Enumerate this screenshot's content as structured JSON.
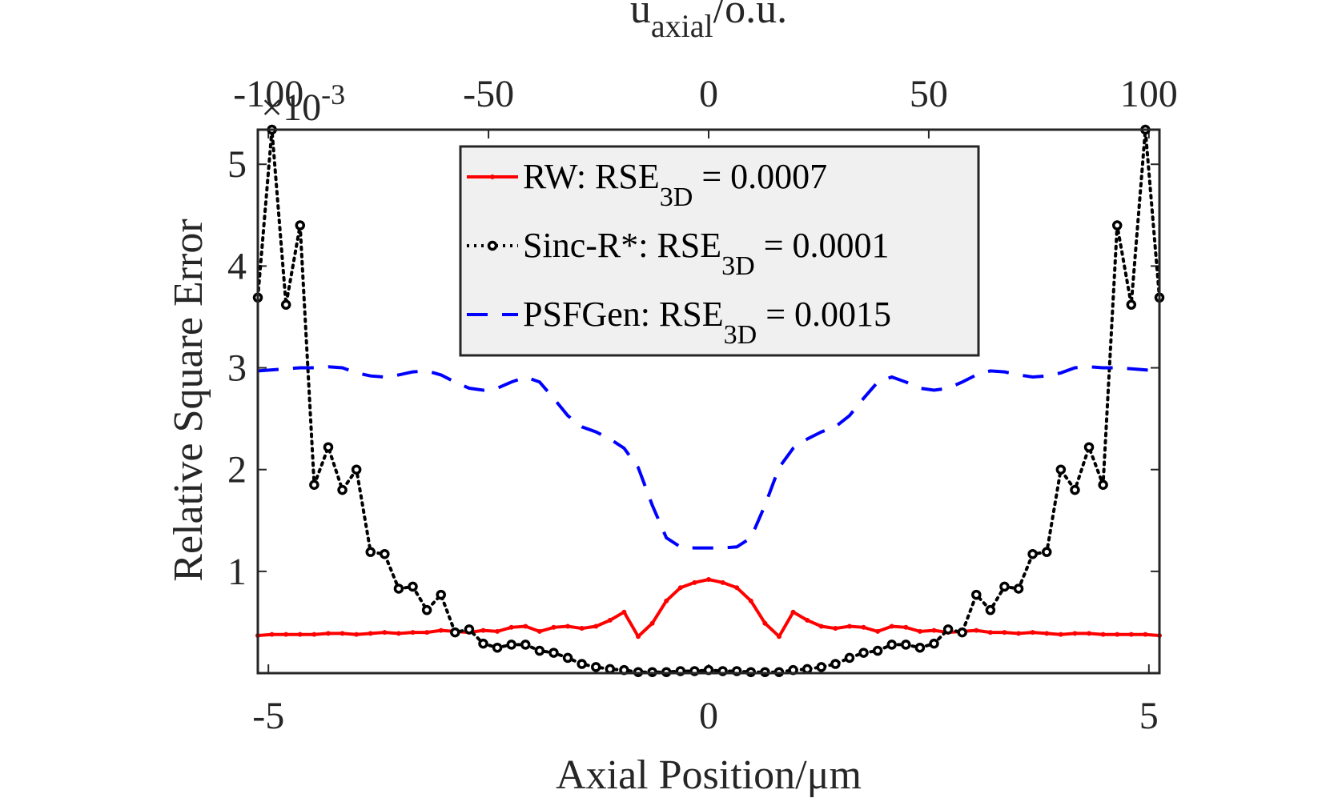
{
  "chart_data": {
    "type": "line",
    "xlabel": "Axial Position/μm",
    "ylabel": "Relative Square Error",
    "y_exponent": {
      "base": "×10",
      "power": "-3"
    },
    "top_axis": {
      "label_main": "u",
      "label_sub": "axial",
      "label_rest": "/o.u.",
      "xlim": [
        -102.4,
        102.4
      ],
      "xticks": [
        -100,
        -50,
        0,
        50,
        100
      ]
    },
    "xlim": [
      -5.12,
      5.12
    ],
    "xticks": [
      -5,
      0,
      5
    ],
    "ylim": [
      0,
      5.34
    ],
    "yticks": [
      1,
      2,
      3,
      4,
      5
    ],
    "grid": false,
    "legend": "top",
    "x": [
      -5.12,
      -4.96,
      -4.8,
      -4.64,
      -4.48,
      -4.32,
      -4.16,
      -4,
      -3.84,
      -3.68,
      -3.52,
      -3.36,
      -3.2,
      -3.04,
      -2.88,
      -2.72,
      -2.56,
      -2.4,
      -2.24,
      -2.08,
      -1.92,
      -1.76,
      -1.6,
      -1.44,
      -1.28,
      -1.12,
      -0.96,
      -0.8,
      -0.64,
      -0.48,
      -0.32,
      -0.16,
      0,
      0.16,
      0.32,
      0.48,
      0.64,
      0.8,
      0.96,
      1.12,
      1.28,
      1.44,
      1.6,
      1.76,
      1.92,
      2.08,
      2.24,
      2.4,
      2.56,
      2.72,
      2.88,
      3.04,
      3.2,
      3.36,
      3.52,
      3.68,
      3.84,
      4,
      4.16,
      4.32,
      4.48,
      4.64,
      4.8,
      4.96,
      5.12
    ],
    "series": [
      {
        "name": "RW: RSE",
        "name_sub": "3D",
        "name_rest": " = 0.0007",
        "color": "#ff0000",
        "style": "solid",
        "marker": "dot",
        "values": [
          0.37,
          0.38,
          0.38,
          0.38,
          0.38,
          0.39,
          0.39,
          0.38,
          0.39,
          0.4,
          0.39,
          0.4,
          0.4,
          0.42,
          0.41,
          0.4,
          0.42,
          0.41,
          0.45,
          0.46,
          0.41,
          0.45,
          0.46,
          0.44,
          0.46,
          0.52,
          0.6,
          0.36,
          0.49,
          0.71,
          0.84,
          0.89,
          0.92,
          0.89,
          0.84,
          0.71,
          0.49,
          0.36,
          0.6,
          0.52,
          0.46,
          0.44,
          0.46,
          0.45,
          0.41,
          0.46,
          0.45,
          0.41,
          0.42,
          0.4,
          0.41,
          0.42,
          0.4,
          0.4,
          0.39,
          0.4,
          0.39,
          0.38,
          0.39,
          0.39,
          0.38,
          0.38,
          0.38,
          0.38,
          0.37
        ]
      },
      {
        "name": "Sinc-R*: RSE",
        "name_sub": "3D",
        "name_rest": " = 0.0001",
        "color": "#000000",
        "style": "dotted",
        "marker": "circle",
        "values": [
          3.69,
          5.34,
          3.62,
          4.4,
          1.85,
          2.22,
          1.8,
          2.0,
          1.19,
          1.17,
          0.83,
          0.85,
          0.62,
          0.77,
          0.4,
          0.43,
          0.29,
          0.25,
          0.28,
          0.28,
          0.22,
          0.2,
          0.15,
          0.09,
          0.06,
          0.04,
          0.03,
          0.01,
          0.01,
          0.01,
          0.02,
          0.02,
          0.03,
          0.02,
          0.02,
          0.01,
          0.01,
          0.01,
          0.03,
          0.04,
          0.06,
          0.09,
          0.15,
          0.2,
          0.22,
          0.28,
          0.28,
          0.25,
          0.29,
          0.43,
          0.4,
          0.77,
          0.62,
          0.85,
          0.83,
          1.17,
          1.19,
          2.0,
          1.8,
          2.22,
          1.85,
          4.4,
          3.62,
          5.34,
          3.69
        ]
      },
      {
        "name": "PSFGen: RSE",
        "name_sub": "3D",
        "name_rest": " = 0.0015",
        "color": "#0000ff",
        "style": "dashed",
        "marker": "none",
        "values": [
          2.97,
          2.98,
          2.99,
          3.0,
          3.0,
          3.01,
          3.0,
          2.95,
          2.92,
          2.91,
          2.93,
          2.96,
          2.97,
          2.93,
          2.86,
          2.8,
          2.78,
          2.8,
          2.86,
          2.91,
          2.86,
          2.7,
          2.53,
          2.42,
          2.37,
          2.3,
          2.21,
          2.02,
          1.65,
          1.33,
          1.24,
          1.23,
          1.23,
          1.23,
          1.24,
          1.33,
          1.65,
          2.02,
          2.21,
          2.3,
          2.37,
          2.42,
          2.53,
          2.7,
          2.86,
          2.91,
          2.86,
          2.8,
          2.78,
          2.8,
          2.86,
          2.93,
          2.97,
          2.96,
          2.93,
          2.91,
          2.92,
          2.95,
          3.0,
          3.01,
          3.0,
          3.0,
          2.99,
          2.98,
          2.97
        ]
      }
    ]
  }
}
